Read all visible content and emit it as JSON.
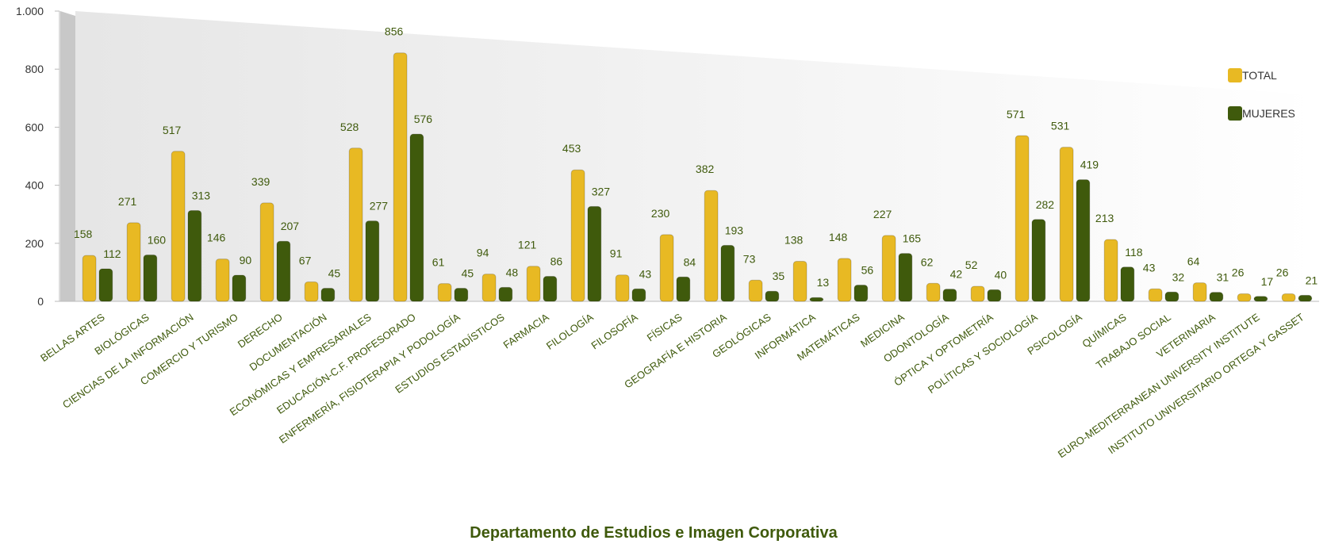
{
  "chart_data": {
    "type": "bar",
    "title": "Departamento de Estudios e Imagen Corporativa",
    "categories": [
      "BELLAS ARTES",
      "BIOLÓGICAS",
      "CIENCIAS DE LA INFORMACIÓN",
      "COMERCIO Y TURISMO",
      "DERECHO",
      "DOCUMENTACIÓN",
      "ECONÓMICAS Y EMPRESARIALES",
      "EDUCACIÓN-C.F. PROFESORADO",
      "ENFERMERÍA, FISIOTERAPIA Y PODOLOGÍA",
      "ESTUDIOS ESTADÍSTICOS",
      "FARMACIA",
      "FILOLOGÍA",
      "FILOSOFÍA",
      "FÍSICAS",
      "GEOGRAFÍA E HISTORIA",
      "GEOLÓGICAS",
      "INFORMÁTICA",
      "MATEMÁTICAS",
      "MEDICINA",
      "ODONTOLOGÍA",
      "ÓPTICA Y OPTOMETRÍA",
      "POLÍTICAS Y SOCIOLOGÍA",
      "PSICOLOGÍA",
      "QUÍMICAS",
      "TRABAJO SOCIAL",
      "VETERINARIA",
      "EURO-MEDITERRANEAN UNIVERSITY INSTITUTE",
      "INSTITUTO UNIVERSITARIO ORTEGA Y GASSET"
    ],
    "series": [
      {
        "name": "TOTAL",
        "color": "#e8b923",
        "values": [
          158,
          271,
          517,
          146,
          339,
          67,
          528,
          856,
          61,
          94,
          121,
          453,
          91,
          230,
          382,
          73,
          138,
          148,
          227,
          62,
          52,
          571,
          531,
          213,
          43,
          64,
          26,
          26
        ]
      },
      {
        "name": "MUJERES",
        "color": "#3f5a0c",
        "values": [
          112,
          160,
          313,
          90,
          207,
          45,
          277,
          576,
          45,
          48,
          86,
          327,
          43,
          84,
          193,
          35,
          13,
          56,
          165,
          42,
          40,
          282,
          419,
          118,
          32,
          31,
          17,
          21
        ]
      }
    ],
    "ylim": [
      0,
      1000
    ],
    "yticks": [
      0,
      200,
      400,
      600,
      800,
      {
        "value": 1000,
        "label": "1.000"
      }
    ],
    "legend": "right"
  }
}
